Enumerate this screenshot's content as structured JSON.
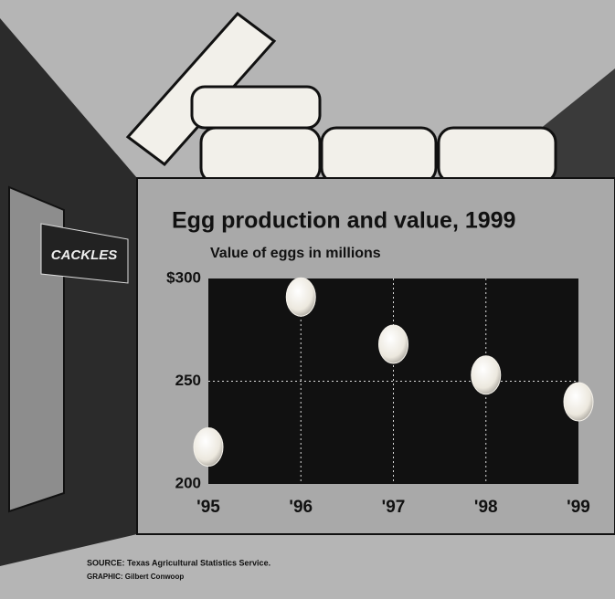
{
  "chart_data": {
    "type": "scatter",
    "title": "Egg production and value, 1999",
    "subtitle": "Value of eggs in millions",
    "categories": [
      "'95",
      "'96",
      "'97",
      "'98",
      "'99"
    ],
    "values": [
      218,
      291,
      268,
      253,
      240
    ],
    "color": "#f4f1ea",
    "ylim": [
      200,
      300
    ],
    "yticks": [
      {
        "value": 300,
        "label": "$300"
      },
      250,
      200
    ],
    "grid": true,
    "brand": "CACKLES",
    "source": "SOURCE: Texas Agricultural Statistics Service.",
    "credit": "GRAPHIC: Gilbert Conwoop"
  }
}
